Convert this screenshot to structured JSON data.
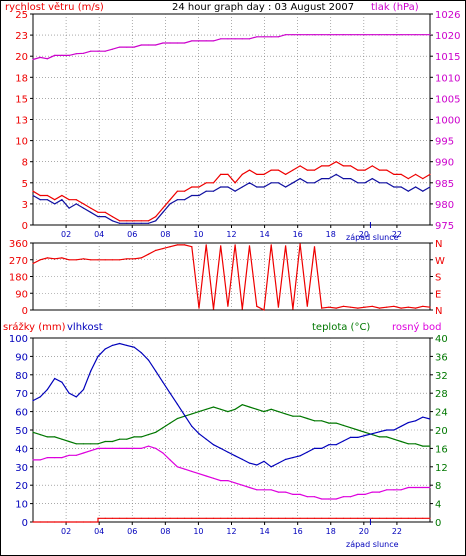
{
  "header": {
    "title": "24 hour graph day : 03 August 2007"
  },
  "colors": {
    "wind": "#ee0000",
    "gust": "#1010a0",
    "pressure": "#cc00cc",
    "direction": "#ee0000",
    "rain": "#ee0000",
    "humidity": "#0000bb",
    "temperature": "#007700",
    "dewpoint": "#dd00dd",
    "grid": "#777777"
  },
  "chart_data": [
    {
      "type": "line",
      "name": "wind-pressure",
      "left_label": "rychlost větru (m/s)",
      "right_label": "tlak (hPa)",
      "left_ticks": [
        "0",
        "3",
        "5",
        "8",
        "10",
        "13",
        "15",
        "18",
        "20",
        "23",
        "25"
      ],
      "right_ticks": [
        "975",
        "980",
        "985",
        "990",
        "995",
        "1000",
        "1005",
        "1010",
        "1015",
        "1020",
        "1026"
      ],
      "ylim_left": [
        0,
        25
      ],
      "ylim_right": [
        975,
        1026
      ],
      "x_ticks": [
        "02",
        "04",
        "06",
        "08",
        "10",
        "12",
        "14",
        "16",
        "18",
        "20",
        "22"
      ],
      "sunset_label": "západ slunce",
      "grid": true,
      "wind_speed_ms": [
        3.5,
        3.0,
        3.0,
        2.5,
        3.0,
        2.0,
        2.5,
        2.0,
        1.5,
        1.0,
        1.0,
        0.5,
        0.2,
        0.2,
        0.2,
        0.2,
        0.2,
        0.5,
        1.5,
        2.5,
        3.0,
        3.0,
        3.5,
        3.5,
        4.0,
        4.0,
        4.5,
        4.5,
        4.0,
        4.5,
        5.0,
        4.5,
        4.5,
        5.0,
        5.0,
        4.5,
        5.0,
        5.5,
        5.0,
        5.0,
        5.5,
        5.5,
        6.0,
        5.5,
        5.5,
        5.0,
        5.0,
        5.5,
        5.0,
        5.0,
        4.5,
        4.5,
        4.0,
        4.5,
        4.0,
        4.5
      ],
      "wind_gust_ms": [
        4.0,
        3.5,
        3.5,
        3.0,
        3.5,
        3.0,
        3.0,
        2.5,
        2.0,
        1.5,
        1.5,
        1.0,
        0.5,
        0.5,
        0.5,
        0.5,
        0.5,
        1.0,
        2.0,
        3.0,
        4.0,
        4.0,
        4.5,
        4.5,
        5.0,
        5.0,
        6.0,
        6.0,
        5.0,
        6.0,
        6.5,
        6.0,
        6.0,
        6.5,
        6.5,
        6.0,
        6.5,
        7.0,
        6.5,
        6.5,
        7.0,
        7.0,
        7.5,
        7.0,
        7.0,
        6.5,
        6.5,
        7.0,
        6.5,
        6.5,
        6.0,
        6.0,
        5.5,
        6.0,
        5.5,
        6.0
      ],
      "pressure_hpa": [
        1015.0,
        1015.5,
        1015.2,
        1016.0,
        1016.0,
        1016.0,
        1016.4,
        1016.5,
        1017.0,
        1017.0,
        1017.0,
        1017.5,
        1018.0,
        1018.0,
        1018.0,
        1018.5,
        1018.5,
        1018.5,
        1019.0,
        1019.0,
        1019.0,
        1019.0,
        1019.5,
        1019.5,
        1019.5,
        1019.5,
        1020.0,
        1020.0,
        1020.0,
        1020.0,
        1020.0,
        1020.5,
        1020.5,
        1020.5,
        1020.5,
        1021.0,
        1021.0,
        1021.0,
        1021.0,
        1021.0,
        1021.0,
        1021.0,
        1021.0,
        1021.0,
        1021.0,
        1021.0,
        1021.0,
        1021.0,
        1021.0,
        1021.0,
        1021.0,
        1021.0,
        1021.0,
        1021.0,
        1021.0,
        1021.0
      ]
    },
    {
      "type": "line",
      "name": "wind-direction",
      "left_ticks": [
        "0",
        "90",
        "180",
        "270",
        "360"
      ],
      "right_ticks": [
        "N",
        "E",
        "S",
        "W",
        "N"
      ],
      "ylim": [
        0,
        360
      ],
      "grid": true,
      "direction_deg": [
        250,
        270,
        280,
        275,
        280,
        270,
        270,
        275,
        270,
        270,
        270,
        270,
        270,
        275,
        275,
        280,
        300,
        320,
        330,
        340,
        350,
        350,
        340,
        10,
        350,
        5,
        345,
        20,
        350,
        5,
        345,
        20,
        0,
        350,
        15,
        345,
        5,
        355,
        20,
        340,
        10,
        15,
        10,
        20,
        15,
        10,
        15,
        20,
        10,
        15,
        20,
        10,
        15,
        10,
        20,
        15
      ]
    },
    {
      "type": "line",
      "name": "rain-humidity-temperature",
      "left_label_rain": "srážky (mm)",
      "left_label_humidity": "vlhkost",
      "right_label_temp": "teplota (°C)",
      "right_label_dew": "rosný bod",
      "left_ticks": [
        "0",
        "10",
        "20",
        "30",
        "40",
        "50",
        "60",
        "70",
        "80",
        "90",
        "100"
      ],
      "right_ticks": [
        "0",
        "4",
        "8",
        "12",
        "16",
        "20",
        "24",
        "28",
        "32",
        "36",
        "40"
      ],
      "ylim_left": [
        0,
        100
      ],
      "ylim_right": [
        0,
        40
      ],
      "x_ticks": [
        "02",
        "04",
        "06",
        "08",
        "10",
        "12",
        "14",
        "16",
        "18",
        "20",
        "22"
      ],
      "sunset_label": "západ slunce",
      "grid": true,
      "rain_mm": [
        0,
        0,
        0,
        0,
        0,
        0,
        0,
        0,
        0,
        2,
        2,
        2,
        2,
        2,
        2,
        2,
        2,
        2,
        2,
        2,
        2,
        2,
        2,
        2,
        2,
        2,
        2,
        2,
        2,
        2,
        2,
        2,
        2,
        2,
        2,
        2,
        2,
        2,
        2,
        2,
        2,
        2,
        2,
        2,
        2,
        2,
        2,
        2,
        2,
        2,
        2,
        2,
        2,
        2,
        2,
        2
      ],
      "humidity_pct": [
        66,
        68,
        72,
        78,
        76,
        70,
        68,
        72,
        82,
        90,
        94,
        96,
        97,
        96,
        95,
        92,
        88,
        82,
        76,
        70,
        64,
        58,
        52,
        48,
        45,
        42,
        40,
        38,
        36,
        34,
        32,
        31,
        33,
        30,
        32,
        34,
        35,
        36,
        38,
        40,
        40,
        42,
        42,
        44,
        46,
        46,
        47,
        48,
        49,
        50,
        50,
        52,
        54,
        55,
        57,
        56
      ],
      "temperature_c": [
        19.5,
        19.0,
        18.5,
        18.5,
        18.0,
        17.5,
        17.0,
        17.0,
        17.0,
        17.0,
        17.5,
        17.5,
        18.0,
        18.0,
        18.5,
        18.5,
        19.0,
        19.5,
        20.5,
        21.5,
        22.5,
        23.0,
        23.5,
        24.0,
        24.5,
        25.0,
        24.5,
        24.0,
        24.5,
        25.5,
        25.0,
        24.5,
        24.0,
        24.5,
        24.0,
        23.5,
        23.0,
        23.0,
        22.5,
        22.0,
        22.0,
        21.5,
        21.5,
        21.0,
        20.5,
        20.0,
        19.5,
        19.0,
        18.5,
        18.5,
        18.0,
        17.5,
        17.0,
        17.0,
        16.5,
        16.5
      ],
      "dewpoint_c": [
        13.5,
        13.5,
        14.0,
        14.0,
        14.0,
        14.5,
        14.5,
        15.0,
        15.5,
        16.0,
        16.0,
        16.0,
        16.0,
        16.0,
        16.0,
        16.0,
        16.5,
        16.0,
        15.0,
        13.5,
        12.0,
        11.5,
        11.0,
        10.5,
        10.0,
        9.5,
        9.0,
        9.0,
        8.5,
        8.0,
        7.5,
        7.0,
        7.0,
        7.0,
        6.5,
        6.5,
        6.0,
        6.0,
        5.5,
        5.5,
        5.0,
        5.0,
        5.0,
        5.5,
        5.5,
        6.0,
        6.0,
        6.5,
        6.5,
        7.0,
        7.0,
        7.0,
        7.5,
        7.5,
        7.5,
        7.5
      ]
    }
  ]
}
